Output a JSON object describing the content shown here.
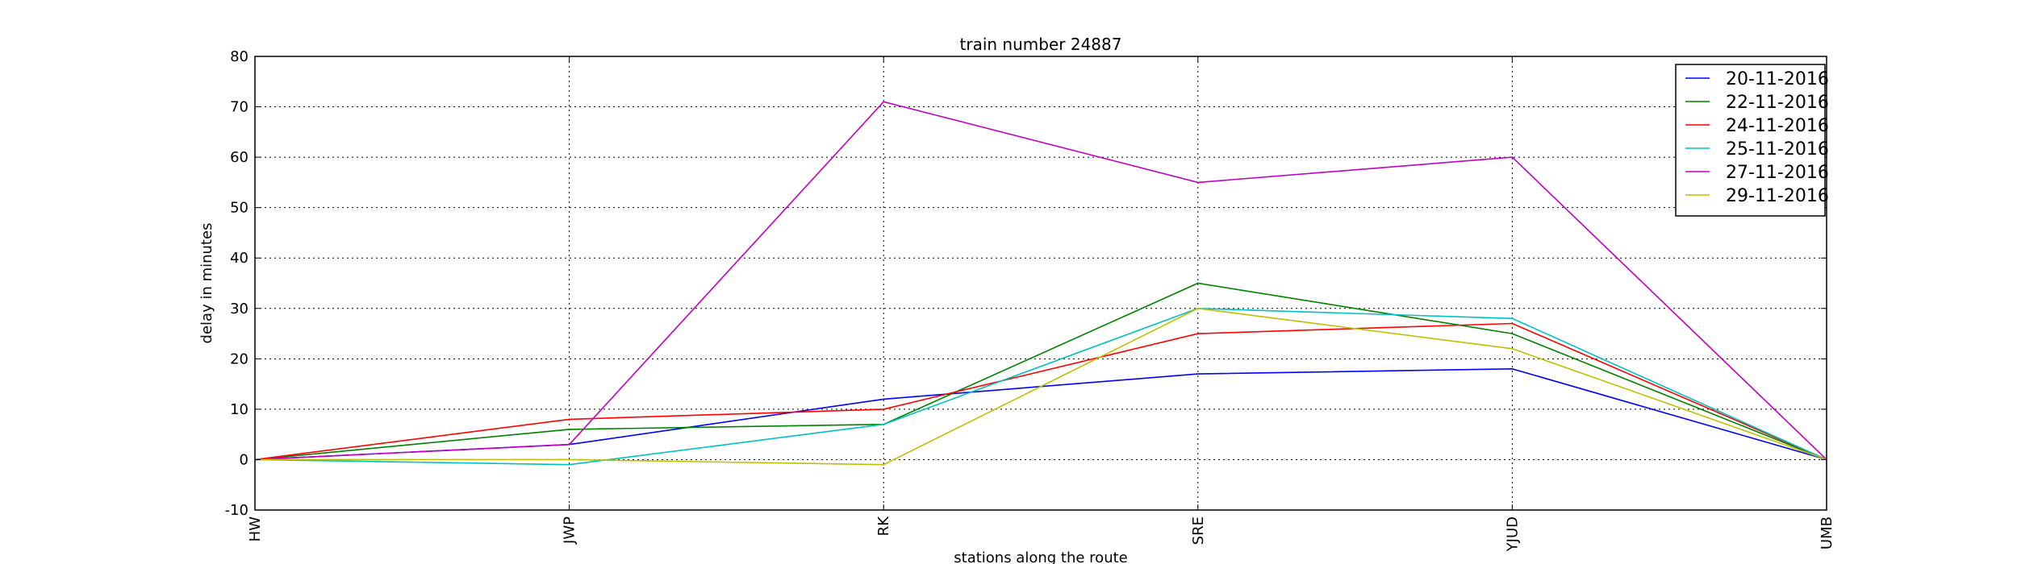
{
  "chart_data": {
    "type": "line",
    "title": "train number 24887",
    "xlabel": "stations along the route",
    "ylabel": "delay in minutes",
    "categories": [
      "HW",
      "JWP",
      "RK",
      "SRE",
      "YJUD",
      "UMB"
    ],
    "ylim": [
      -10,
      80
    ],
    "yticks": [
      -10,
      0,
      10,
      20,
      30,
      40,
      50,
      60,
      70,
      80
    ],
    "grid": true,
    "legend_position": "top-right",
    "series": [
      {
        "name": "20-11-2016",
        "color": "#0000ff",
        "values": [
          0,
          3,
          12,
          17,
          18,
          0
        ]
      },
      {
        "name": "22-11-2016",
        "color": "#008000",
        "values": [
          0,
          6,
          7,
          35,
          25,
          0
        ]
      },
      {
        "name": "24-11-2016",
        "color": "#ff0000",
        "values": [
          0,
          8,
          10,
          25,
          27,
          0
        ]
      },
      {
        "name": "25-11-2016",
        "color": "#00bfbf",
        "values": [
          0,
          -1,
          7,
          30,
          28,
          0
        ]
      },
      {
        "name": "27-11-2016",
        "color": "#bf00bf",
        "values": [
          0,
          3,
          71,
          55,
          60,
          0
        ]
      },
      {
        "name": "29-11-2016",
        "color": "#bfbf00",
        "values": [
          0,
          0,
          -1,
          30,
          22,
          0
        ]
      }
    ]
  }
}
